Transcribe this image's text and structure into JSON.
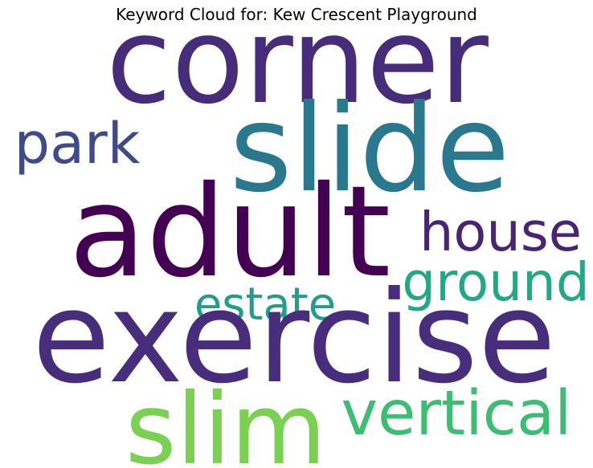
{
  "chart_data": {
    "type": "wordcloud",
    "title": "Keyword Cloud for: Kew Crescent Playground",
    "words": [
      {
        "text": "corner",
        "color": "#472c7a"
      },
      {
        "text": "slide",
        "color": "#2a788e"
      },
      {
        "text": "park",
        "color": "#3e4a89"
      },
      {
        "text": "adult",
        "color": "#440154"
      },
      {
        "text": "house",
        "color": "#482475"
      },
      {
        "text": "ground",
        "color": "#22a884"
      },
      {
        "text": "estate",
        "color": "#1f9e89"
      },
      {
        "text": "exercise",
        "color": "#472d7b"
      },
      {
        "text": "slim",
        "color": "#7ad151"
      },
      {
        "text": "vertical",
        "color": "#3dbc74"
      }
    ]
  }
}
